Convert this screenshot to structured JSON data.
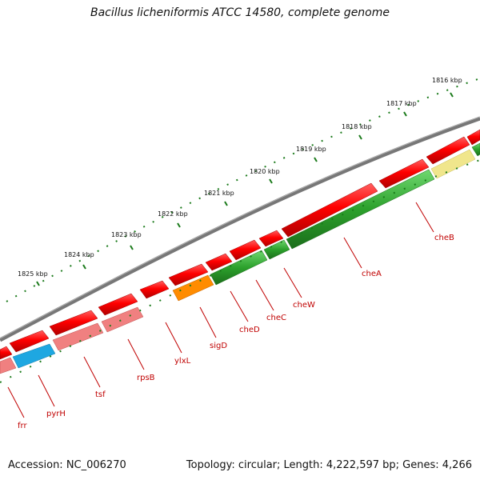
{
  "title": "Bacillus licheniformis ATCC 14580, complete genome",
  "footer": {
    "accession": "Accession: NC_006270",
    "topology": "Topology: circular; Length: 4,222,597 bp; Genes: 4,266"
  },
  "ruler": [
    "1816 kbp",
    "1817 kbp",
    "1818 kbp",
    "1819 kbp",
    "1820 kbp",
    "1821 kbp",
    "1822 kbp",
    "1823 kbp",
    "1824 kbp",
    "1825 kbp"
  ],
  "genes": [
    "cheB",
    "cheA",
    "cheW",
    "cheC",
    "cheD",
    "sigD",
    "ylxL",
    "rpsB",
    "tsf",
    "pyrH",
    "frr"
  ],
  "colors": {
    "backbone": "#808080",
    "cds": "#ff0000",
    "green_band": "#2ca02c",
    "yellow_band": "#f0e68c",
    "orange_band": "#ff8c00",
    "pink_band": "#f08080",
    "blue_band": "#1ea7e1",
    "ruler_ticks": "#1a7a1a",
    "gene_labels": "#c00000"
  }
}
